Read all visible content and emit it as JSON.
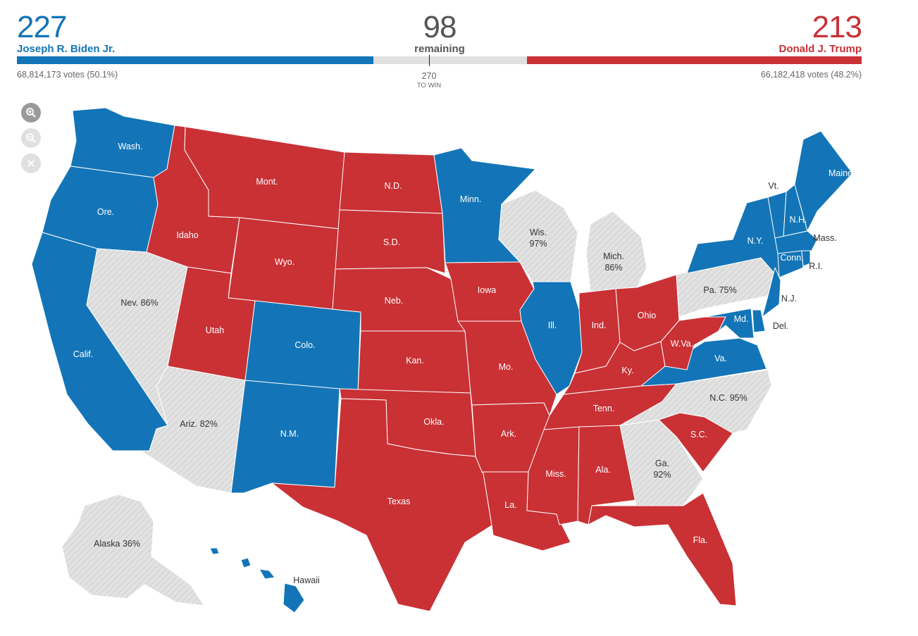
{
  "header": {
    "biden": {
      "ev": "227",
      "name": "Joseph R. Biden Jr.",
      "votes": "68,814,173 votes (50.1%)",
      "color": "#1375b7"
    },
    "trump": {
      "ev": "213",
      "name": "Donald J. Trump",
      "votes": "66,182,418 votes (48.2%)",
      "color": "#c93135"
    },
    "remaining": {
      "count": "98",
      "label": "remaining",
      "color": "#e0e0e0"
    },
    "to_win": {
      "value": "270",
      "label": "TO WIN"
    }
  },
  "zoom_controls": {
    "zoom_in": "zoom-in-icon",
    "zoom_out": "zoom-out-icon",
    "reset": "close-icon"
  },
  "map": {
    "colors": {
      "dem": "#1375b7",
      "rep": "#c93135",
      "undecided": "#e2e2e2"
    },
    "labels": {
      "wa": "Wash.",
      "or": "Ore.",
      "ca": "Calif.",
      "nv": "Nev. 86%",
      "id": "Idaho",
      "mt": "Mont.",
      "wy": "Wyo.",
      "ut": "Utah",
      "az": "Ariz. 82%",
      "co": "Colo.",
      "nm": "N.M.",
      "nd": "N.D.",
      "sd": "S.D.",
      "ne": "Neb.",
      "ks": "Kan.",
      "ok": "Okla.",
      "tx": "Texas",
      "mn": "Minn.",
      "ia": "Iowa",
      "mo": "Mo.",
      "ar": "Ark.",
      "la": "La.",
      "wi_name": "Wis.",
      "wi_pct": "97%",
      "il": "Ill.",
      "mi_name": "Mich.",
      "mi_pct": "86%",
      "in": "Ind.",
      "oh": "Ohio",
      "ky": "Ky.",
      "tn": "Tenn.",
      "ms": "Miss.",
      "al": "Ala.",
      "ga_name": "Ga.",
      "ga_pct": "92%",
      "fl": "Fla.",
      "sc": "S.C.",
      "nc": "N.C. 95%",
      "va": "Va.",
      "wv": "W.Va.",
      "pa": "Pa. 75%",
      "ny": "N.Y.",
      "vt": "Vt.",
      "nh": "N.H.",
      "me": "Maine",
      "ma": "Mass.",
      "ct": "Conn.",
      "ri": "R.I.",
      "nj": "N.J.",
      "de": "Del.",
      "md": "Md.",
      "ak": "Alaska 36%",
      "hi": "Hawaii"
    }
  }
}
